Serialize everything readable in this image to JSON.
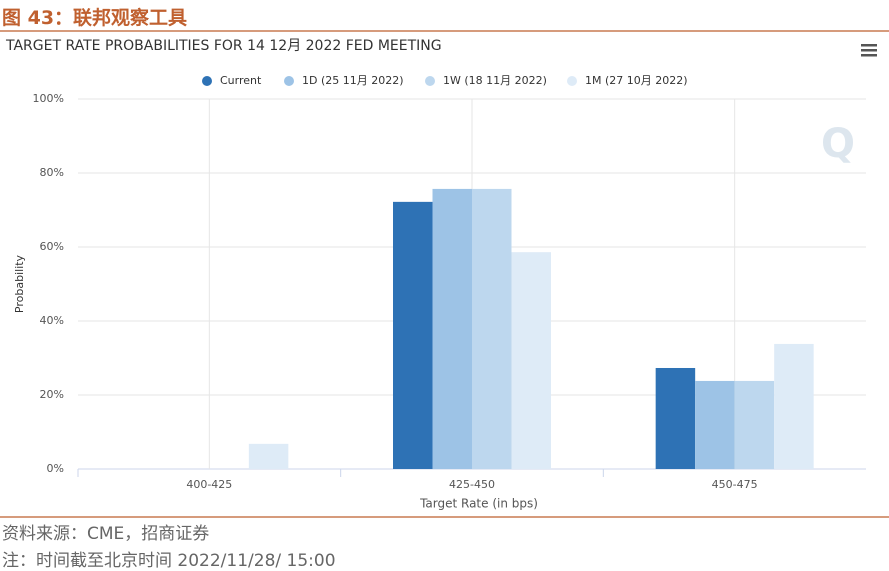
{
  "figure_label": "图 43：联邦观察工具",
  "source": "资料来源：CME，招商证券",
  "note": "注：时间截至北京时间 2022/11/28/ 15:00",
  "chart_data": {
    "type": "bar",
    "title": "TARGET RATE PROBABILITIES FOR 14 12月 2022 FED MEETING",
    "x_label": "Target Rate (in bps)",
    "y_label": "Probability",
    "categories": [
      "400-425",
      "425-450",
      "450-475"
    ],
    "series": [
      {
        "name": "Current",
        "color": "#2e72b5",
        "values": [
          0,
          72.2,
          27.3
        ]
      },
      {
        "name": "1D (25 11月 2022)",
        "color": "#9dc3e6",
        "values": [
          0,
          75.7,
          23.8
        ]
      },
      {
        "name": "1W (18 11月 2022)",
        "color": "#bdd7ee",
        "values": [
          0,
          75.7,
          23.8
        ]
      },
      {
        "name": "1M (27 10月 2022)",
        "color": "#deebf7",
        "values": [
          6.8,
          58.6,
          33.8
        ]
      }
    ],
    "ylim": [
      0,
      100
    ],
    "yticks": [
      {
        "value": 0,
        "label": "0%"
      },
      {
        "value": 20,
        "label": "20%"
      },
      {
        "value": 40,
        "label": "40%"
      },
      {
        "value": 60,
        "label": "60%"
      },
      {
        "value": 80,
        "label": "80%"
      },
      {
        "value": 100,
        "label": "100%"
      }
    ],
    "grid": true
  }
}
